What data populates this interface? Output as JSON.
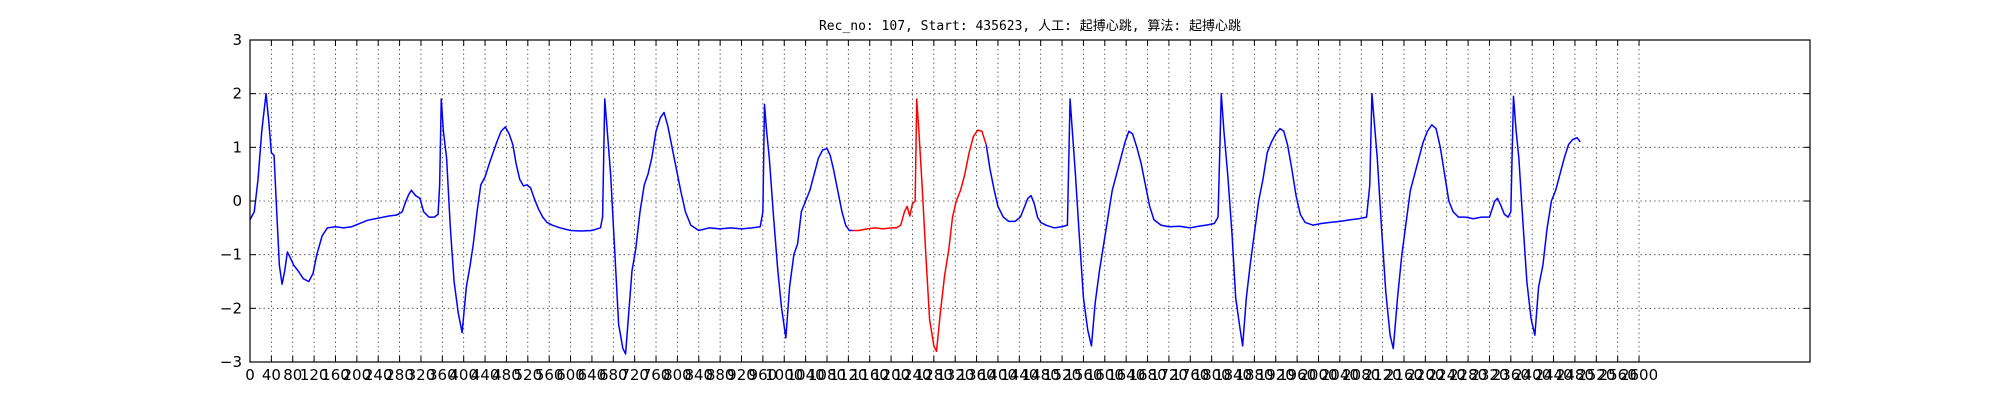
{
  "chart_data": {
    "type": "line",
    "title": "Rec_no: 107, Start: 435623, 人工: 起搏心跳, 算法: 起搏心跳",
    "xlabel": "",
    "ylabel": "",
    "xlim": [
      0,
      2920
    ],
    "ylim": [
      -3,
      3
    ],
    "grid": true,
    "y_ticks": [
      "3",
      "2",
      "1",
      "0",
      "−1",
      "−2",
      "−3"
    ],
    "x_ticks": [
      "0",
      "40",
      "80",
      "120",
      "160",
      "200",
      "240",
      "280",
      "320",
      "360",
      "400",
      "440",
      "480",
      "520",
      "560",
      "600",
      "640",
      "680",
      "720",
      "760",
      "800",
      "840",
      "880",
      "920",
      "960",
      "1000",
      "1040",
      "1080",
      "1120",
      "1160",
      "1200",
      "1240",
      "1280",
      "1320",
      "1360",
      "1400",
      "1440",
      "1480",
      "1520",
      "1560",
      "1600",
      "1640",
      "1680",
      "1720",
      "1760",
      "1800",
      "1840",
      "1880",
      "1920",
      "1960",
      "2000",
      "2040",
      "2080",
      "2120",
      "2160",
      "2200",
      "2240",
      "2280",
      "2320",
      "2360",
      "2400",
      "2440",
      "2480",
      "2520",
      "2560",
      "2600"
    ],
    "series": [
      {
        "color": "#0000ff",
        "points": [
          [
            0,
            -0.35
          ],
          [
            8,
            -0.2
          ],
          [
            15,
            0.4
          ],
          [
            22,
            1.3
          ],
          [
            30,
            2.0
          ],
          [
            35,
            1.5
          ],
          [
            40,
            0.9
          ],
          [
            45,
            0.85
          ],
          [
            50,
            -0.2
          ],
          [
            55,
            -1.2
          ],
          [
            60,
            -1.55
          ],
          [
            65,
            -1.3
          ],
          [
            70,
            -0.95
          ],
          [
            75,
            -1.05
          ],
          [
            82,
            -1.2
          ],
          [
            90,
            -1.3
          ],
          [
            100,
            -1.45
          ],
          [
            110,
            -1.5
          ],
          [
            118,
            -1.35
          ],
          [
            125,
            -1.0
          ],
          [
            135,
            -0.65
          ],
          [
            145,
            -0.5
          ],
          [
            160,
            -0.48
          ],
          [
            175,
            -0.5
          ],
          [
            190,
            -0.48
          ],
          [
            205,
            -0.42
          ],
          [
            220,
            -0.36
          ],
          [
            240,
            -0.32
          ],
          [
            260,
            -0.28
          ],
          [
            275,
            -0.26
          ],
          [
            285,
            -0.2
          ],
          [
            290,
            -0.05
          ],
          [
            297,
            0.12
          ],
          [
            302,
            0.2
          ],
          [
            310,
            0.1
          ],
          [
            318,
            0.05
          ],
          [
            325,
            -0.2
          ],
          [
            335,
            -0.3
          ],
          [
            345,
            -0.3
          ],
          [
            352,
            -0.25
          ],
          [
            355,
            0.3
          ],
          [
            358,
            1.9
          ],
          [
            362,
            1.3
          ],
          [
            368,
            0.8
          ],
          [
            375,
            -0.5
          ],
          [
            382,
            -1.5
          ],
          [
            390,
            -2.1
          ],
          [
            397,
            -2.45
          ],
          [
            405,
            -1.6
          ],
          [
            412,
            -1.2
          ],
          [
            418,
            -0.8
          ],
          [
            425,
            -0.2
          ],
          [
            432,
            0.3
          ],
          [
            440,
            0.45
          ],
          [
            448,
            0.7
          ],
          [
            455,
            0.9
          ],
          [
            462,
            1.1
          ],
          [
            470,
            1.3
          ],
          [
            478,
            1.38
          ],
          [
            485,
            1.25
          ],
          [
            492,
            1.05
          ],
          [
            498,
            0.7
          ],
          [
            505,
            0.4
          ],
          [
            512,
            0.28
          ],
          [
            518,
            0.3
          ],
          [
            525,
            0.25
          ],
          [
            532,
            0.05
          ],
          [
            540,
            -0.15
          ],
          [
            548,
            -0.3
          ],
          [
            556,
            -0.4
          ],
          [
            566,
            -0.45
          ],
          [
            580,
            -0.5
          ],
          [
            600,
            -0.55
          ],
          [
            620,
            -0.56
          ],
          [
            640,
            -0.55
          ],
          [
            656,
            -0.5
          ],
          [
            660,
            -0.3
          ],
          [
            664,
            1.9
          ],
          [
            668,
            1.4
          ],
          [
            675,
            0.5
          ],
          [
            682,
            -0.8
          ],
          [
            690,
            -2.3
          ],
          [
            698,
            -2.75
          ],
          [
            703,
            -2.85
          ],
          [
            708,
            -2.2
          ],
          [
            715,
            -1.3
          ],
          [
            722,
            -0.9
          ],
          [
            730,
            -0.2
          ],
          [
            738,
            0.3
          ],
          [
            745,
            0.5
          ],
          [
            752,
            0.8
          ],
          [
            760,
            1.3
          ],
          [
            768,
            1.55
          ],
          [
            775,
            1.65
          ],
          [
            782,
            1.4
          ],
          [
            790,
            1.0
          ],
          [
            798,
            0.6
          ],
          [
            806,
            0.2
          ],
          [
            815,
            -0.2
          ],
          [
            825,
            -0.45
          ],
          [
            840,
            -0.55
          ],
          [
            860,
            -0.5
          ],
          [
            880,
            -0.52
          ],
          [
            900,
            -0.5
          ],
          [
            920,
            -0.52
          ],
          [
            940,
            -0.5
          ],
          [
            955,
            -0.48
          ],
          [
            960,
            -0.2
          ],
          [
            963,
            1.8
          ],
          [
            967,
            1.3
          ],
          [
            972,
            0.8
          ],
          [
            980,
            -0.3
          ],
          [
            988,
            -1.3
          ],
          [
            995,
            -2.0
          ],
          [
            1003,
            -2.55
          ],
          [
            1010,
            -1.6
          ],
          [
            1018,
            -1.0
          ],
          [
            1025,
            -0.8
          ],
          [
            1032,
            -0.2
          ],
          [
            1040,
            0.0
          ],
          [
            1048,
            0.2
          ],
          [
            1056,
            0.5
          ],
          [
            1064,
            0.8
          ],
          [
            1072,
            0.95
          ],
          [
            1080,
            0.98
          ],
          [
            1086,
            0.85
          ],
          [
            1092,
            0.6
          ],
          [
            1100,
            0.2
          ],
          [
            1108,
            -0.2
          ],
          [
            1115,
            -0.45
          ],
          [
            1122,
            -0.55
          ],
          [
            1128,
            -0.55
          ]
        ]
      },
      {
        "color": "#ff0000",
        "points": [
          [
            1128,
            -0.55
          ],
          [
            1140,
            -0.55
          ],
          [
            1155,
            -0.52
          ],
          [
            1170,
            -0.5
          ],
          [
            1185,
            -0.52
          ],
          [
            1200,
            -0.5
          ],
          [
            1210,
            -0.5
          ],
          [
            1218,
            -0.45
          ],
          [
            1225,
            -0.2
          ],
          [
            1230,
            -0.1
          ],
          [
            1235,
            -0.28
          ],
          [
            1240,
            -0.05
          ],
          [
            1245,
            0.0
          ],
          [
            1248,
            1.9
          ],
          [
            1252,
            1.3
          ],
          [
            1258,
            0.3
          ],
          [
            1265,
            -1.0
          ],
          [
            1272,
            -2.2
          ],
          [
            1280,
            -2.7
          ],
          [
            1285,
            -2.8
          ],
          [
            1292,
            -2.1
          ],
          [
            1300,
            -1.4
          ],
          [
            1308,
            -0.9
          ],
          [
            1315,
            -0.3
          ],
          [
            1322,
            0.0
          ],
          [
            1330,
            0.2
          ],
          [
            1338,
            0.5
          ],
          [
            1346,
            0.9
          ],
          [
            1354,
            1.2
          ],
          [
            1362,
            1.32
          ],
          [
            1370,
            1.3
          ],
          [
            1378,
            1.05
          ]
        ]
      },
      {
        "color": "#0000ff",
        "points": [
          [
            1378,
            1.05
          ],
          [
            1385,
            0.6
          ],
          [
            1393,
            0.2
          ],
          [
            1400,
            -0.1
          ],
          [
            1410,
            -0.3
          ],
          [
            1420,
            -0.38
          ],
          [
            1432,
            -0.38
          ],
          [
            1442,
            -0.3
          ],
          [
            1450,
            -0.1
          ],
          [
            1456,
            0.05
          ],
          [
            1462,
            0.1
          ],
          [
            1468,
            -0.05
          ],
          [
            1474,
            -0.3
          ],
          [
            1480,
            -0.4
          ],
          [
            1490,
            -0.45
          ],
          [
            1505,
            -0.5
          ],
          [
            1520,
            -0.48
          ],
          [
            1530,
            -0.45
          ],
          [
            1535,
            1.9
          ],
          [
            1540,
            1.2
          ],
          [
            1545,
            0.5
          ],
          [
            1552,
            -0.6
          ],
          [
            1560,
            -1.8
          ],
          [
            1568,
            -2.4
          ],
          [
            1575,
            -2.7
          ],
          [
            1582,
            -1.9
          ],
          [
            1590,
            -1.3
          ],
          [
            1598,
            -0.8
          ],
          [
            1606,
            -0.3
          ],
          [
            1614,
            0.2
          ],
          [
            1622,
            0.5
          ],
          [
            1630,
            0.8
          ],
          [
            1638,
            1.1
          ],
          [
            1645,
            1.3
          ],
          [
            1652,
            1.25
          ],
          [
            1660,
            1.0
          ],
          [
            1668,
            0.7
          ],
          [
            1676,
            0.3
          ],
          [
            1684,
            -0.1
          ],
          [
            1692,
            -0.35
          ],
          [
            1705,
            -0.45
          ],
          [
            1720,
            -0.48
          ],
          [
            1740,
            -0.47
          ],
          [
            1760,
            -0.5
          ],
          [
            1775,
            -0.47
          ],
          [
            1790,
            -0.45
          ],
          [
            1805,
            -0.42
          ],
          [
            1812,
            -0.3
          ],
          [
            1818,
            2.0
          ],
          [
            1823,
            1.3
          ],
          [
            1830,
            0.5
          ],
          [
            1838,
            -0.6
          ],
          [
            1845,
            -1.8
          ],
          [
            1852,
            -2.3
          ],
          [
            1858,
            -2.7
          ],
          [
            1865,
            -1.8
          ],
          [
            1872,
            -1.2
          ],
          [
            1880,
            -0.6
          ],
          [
            1888,
            0.0
          ],
          [
            1896,
            0.4
          ],
          [
            1904,
            0.9
          ],
          [
            1912,
            1.1
          ],
          [
            1920,
            1.25
          ],
          [
            1928,
            1.35
          ],
          [
            1935,
            1.3
          ],
          [
            1942,
            1.05
          ],
          [
            1950,
            0.6
          ],
          [
            1958,
            0.1
          ],
          [
            1966,
            -0.25
          ],
          [
            1975,
            -0.4
          ],
          [
            1990,
            -0.45
          ],
          [
            2005,
            -0.42
          ],
          [
            2020,
            -0.4
          ],
          [
            2040,
            -0.38
          ],
          [
            2060,
            -0.35
          ],
          [
            2075,
            -0.33
          ],
          [
            2090,
            -0.3
          ],
          [
            2096,
            0.3
          ],
          [
            2100,
            2.0
          ],
          [
            2105,
            1.4
          ],
          [
            2110,
            0.8
          ],
          [
            2118,
            -0.5
          ],
          [
            2126,
            -1.7
          ],
          [
            2134,
            -2.5
          ],
          [
            2140,
            -2.75
          ],
          [
            2148,
            -1.8
          ],
          [
            2156,
            -1.0
          ],
          [
            2164,
            -0.4
          ],
          [
            2172,
            0.2
          ],
          [
            2180,
            0.5
          ],
          [
            2188,
            0.8
          ],
          [
            2196,
            1.1
          ],
          [
            2204,
            1.3
          ],
          [
            2212,
            1.42
          ],
          [
            2220,
            1.35
          ],
          [
            2228,
            1.0
          ],
          [
            2236,
            0.5
          ],
          [
            2244,
            0.0
          ],
          [
            2252,
            -0.2
          ],
          [
            2262,
            -0.3
          ],
          [
            2275,
            -0.3
          ],
          [
            2290,
            -0.33
          ],
          [
            2305,
            -0.3
          ],
          [
            2320,
            -0.3
          ],
          [
            2330,
            0.0
          ],
          [
            2335,
            0.05
          ],
          [
            2342,
            -0.1
          ],
          [
            2348,
            -0.25
          ],
          [
            2355,
            -0.3
          ],
          [
            2360,
            -0.2
          ],
          [
            2365,
            1.95
          ],
          [
            2370,
            1.3
          ],
          [
            2375,
            0.8
          ],
          [
            2382,
            -0.3
          ],
          [
            2390,
            -1.5
          ],
          [
            2398,
            -2.2
          ],
          [
            2405,
            -2.5
          ],
          [
            2412,
            -1.6
          ],
          [
            2420,
            -1.2
          ],
          [
            2428,
            -0.5
          ],
          [
            2436,
            0.0
          ],
          [
            2444,
            0.2
          ],
          [
            2452,
            0.5
          ],
          [
            2460,
            0.8
          ],
          [
            2468,
            1.05
          ],
          [
            2476,
            1.15
          ],
          [
            2484,
            1.18
          ],
          [
            2490,
            1.1
          ]
        ]
      }
    ]
  }
}
